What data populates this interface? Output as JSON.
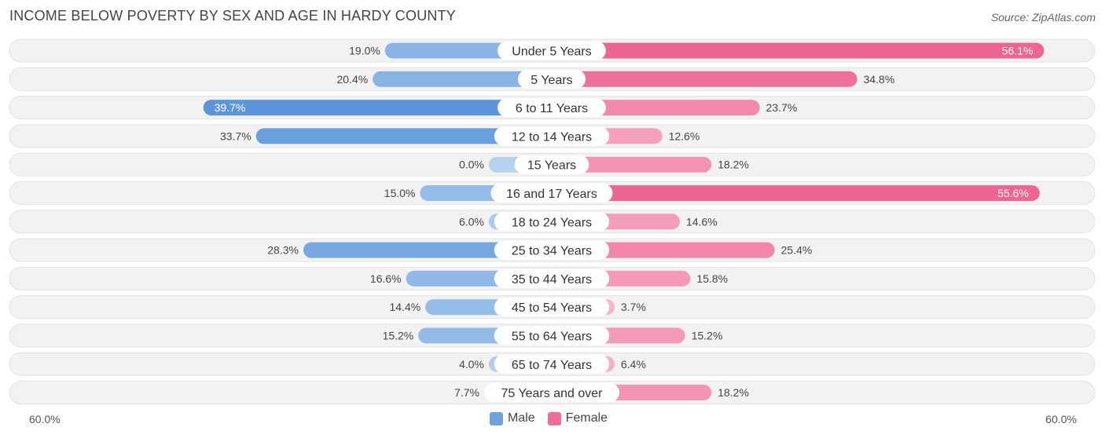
{
  "title": "INCOME BELOW POVERTY BY SEX AND AGE IN HARDY COUNTY",
  "source": "Source: ZipAtlas.com",
  "axis": {
    "left_label": "60.0%",
    "right_label": "60.0%"
  },
  "legend": [
    {
      "label": "Male",
      "color": "#6fa2dd"
    },
    {
      "label": "Female",
      "color": "#f06d98"
    }
  ],
  "chart_data": {
    "type": "bar",
    "orientation": "horizontal-diverging",
    "xlim": [
      -60,
      60
    ],
    "categories": [
      "Under 5 Years",
      "5 Years",
      "6 to 11 Years",
      "12 to 14 Years",
      "15 Years",
      "16 and 17 Years",
      "18 to 24 Years",
      "25 to 34 Years",
      "35 to 44 Years",
      "45 to 54 Years",
      "55 to 64 Years",
      "65 to 74 Years",
      "75 Years and over"
    ],
    "series": [
      {
        "name": "Male",
        "values": [
          19.0,
          20.4,
          39.7,
          33.7,
          0.0,
          15.0,
          6.0,
          28.3,
          16.6,
          14.4,
          15.2,
          4.0,
          7.7
        ],
        "labels": [
          "19.0%",
          "20.4%",
          "39.7%",
          "33.7%",
          "0.0%",
          "15.0%",
          "6.0%",
          "28.3%",
          "16.6%",
          "14.4%",
          "15.2%",
          "4.0%",
          "7.7%"
        ]
      },
      {
        "name": "Female",
        "values": [
          56.1,
          34.8,
          23.7,
          12.6,
          18.2,
          55.6,
          14.6,
          25.4,
          15.8,
          3.7,
          15.2,
          6.4,
          18.2
        ],
        "labels": [
          "56.1%",
          "34.8%",
          "23.7%",
          "12.6%",
          "18.2%",
          "55.6%",
          "14.6%",
          "25.4%",
          "15.8%",
          "3.7%",
          "15.2%",
          "6.4%",
          "18.2%"
        ]
      }
    ]
  }
}
